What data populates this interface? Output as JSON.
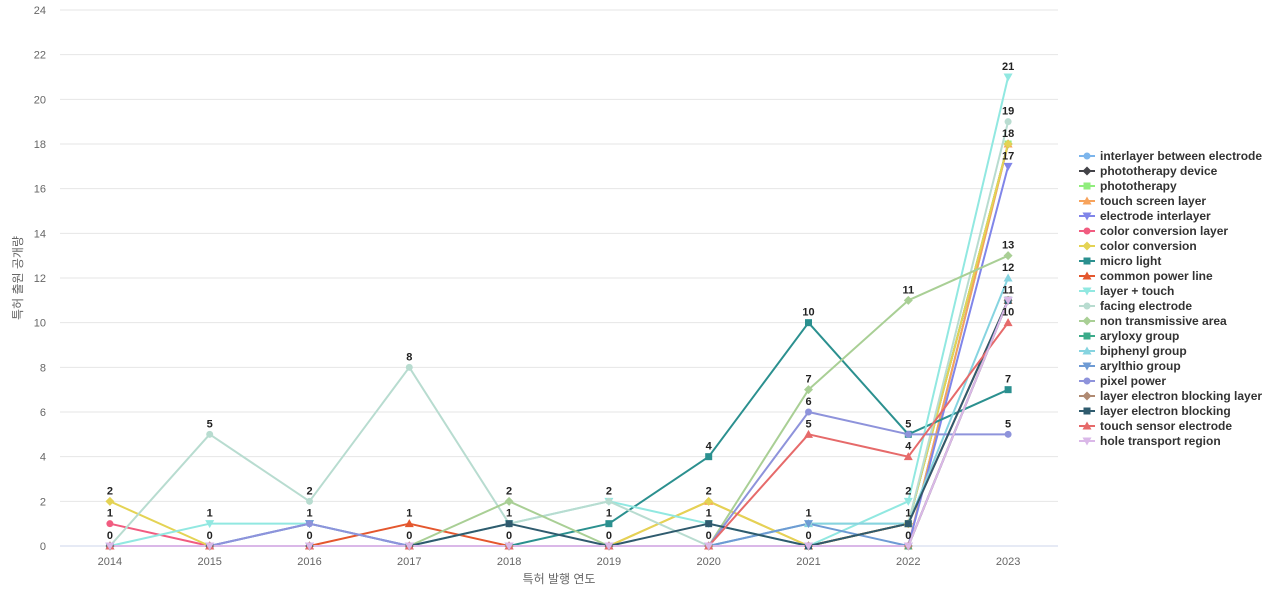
{
  "chart_data": {
    "type": "line",
    "title": "",
    "xlabel": "특허 발행 연도",
    "ylabel": "특허 출원 공개량",
    "x": [
      "2014",
      "2015",
      "2016",
      "2017",
      "2018",
      "2019",
      "2020",
      "2021",
      "2022",
      "2023"
    ],
    "ylim": [
      0,
      24
    ],
    "yticks": [
      0,
      2,
      4,
      6,
      8,
      10,
      12,
      14,
      16,
      18,
      20,
      22,
      24
    ],
    "grid": true,
    "legend": "right",
    "series": [
      {
        "name": "interlayer between electrode",
        "color": "#7cb5ec",
        "marker": "circle",
        "values": [
          0,
          0,
          1,
          0,
          0,
          0,
          0,
          0,
          0,
          18
        ]
      },
      {
        "name": "phototherapy device",
        "color": "#434348",
        "marker": "diamond",
        "values": [
          0,
          0,
          0,
          0,
          0,
          0,
          0,
          0,
          1,
          18
        ]
      },
      {
        "name": "phototherapy",
        "color": "#90ed7d",
        "marker": "square",
        "values": [
          0,
          0,
          0,
          0,
          0,
          0,
          0,
          0,
          1,
          18
        ]
      },
      {
        "name": "touch screen layer",
        "color": "#f7a35c",
        "marker": "triangle",
        "values": [
          0,
          0,
          0,
          0,
          0,
          0,
          2,
          0,
          0,
          18
        ]
      },
      {
        "name": "electrode interlayer",
        "color": "#8085e9",
        "marker": "triangle-down",
        "values": [
          0,
          0,
          0,
          0,
          0,
          0,
          0,
          0,
          0,
          17
        ]
      },
      {
        "name": "color conversion layer",
        "color": "#f15c80",
        "marker": "circle",
        "values": [
          1,
          0,
          0,
          0,
          0,
          0,
          0,
          0,
          0,
          11
        ]
      },
      {
        "name": "color conversion",
        "color": "#e4d354",
        "marker": "diamond",
        "values": [
          2,
          0,
          0,
          0,
          0,
          0,
          2,
          0,
          1,
          18
        ]
      },
      {
        "name": "micro light",
        "color": "#2b908f",
        "marker": "square",
        "values": [
          0,
          0,
          0,
          0,
          0,
          1,
          4,
          10,
          5,
          7
        ]
      },
      {
        "name": "common power line",
        "color": "#e4572e",
        "marker": "triangle",
        "values": [
          0,
          0,
          0,
          1,
          0,
          0,
          0,
          0,
          1,
          11
        ]
      },
      {
        "name": "layer + touch",
        "color": "#91e8e1",
        "marker": "triangle-down",
        "values": [
          0,
          1,
          1,
          0,
          1,
          2,
          1,
          0,
          2,
          21
        ]
      },
      {
        "name": "facing electrode",
        "color": "#b8dcd0",
        "marker": "circle",
        "values": [
          0,
          5,
          2,
          8,
          1,
          2,
          0,
          1,
          1,
          19
        ]
      },
      {
        "name": "non transmissive area",
        "color": "#a9cf95",
        "marker": "diamond",
        "values": [
          0,
          0,
          0,
          0,
          2,
          0,
          0,
          7,
          11,
          13
        ]
      },
      {
        "name": "aryloxy group",
        "color": "#3cab8a",
        "marker": "square",
        "values": [
          0,
          0,
          0,
          0,
          0,
          0,
          0,
          0,
          0,
          11
        ]
      },
      {
        "name": "biphenyl group",
        "color": "#86d4e0",
        "marker": "triangle",
        "values": [
          0,
          0,
          0,
          0,
          0,
          0,
          0,
          1,
          1,
          12
        ]
      },
      {
        "name": "arylthio group",
        "color": "#6e9bd4",
        "marker": "triangle-down",
        "values": [
          0,
          0,
          1,
          0,
          0,
          0,
          0,
          1,
          0,
          11
        ]
      },
      {
        "name": "pixel power",
        "color": "#8e93db",
        "marker": "circle",
        "values": [
          0,
          0,
          1,
          0,
          0,
          0,
          0,
          6,
          5,
          5
        ]
      },
      {
        "name": "layer electron blocking layer",
        "color": "#b08a72",
        "marker": "diamond",
        "values": [
          0,
          0,
          0,
          0,
          0,
          0,
          0,
          0,
          0,
          11
        ]
      },
      {
        "name": "layer electron blocking",
        "color": "#2f5b6e",
        "marker": "square",
        "values": [
          0,
          0,
          0,
          0,
          1,
          0,
          1,
          0,
          1,
          11
        ]
      },
      {
        "name": "touch sensor electrode",
        "color": "#e66a6a",
        "marker": "triangle",
        "values": [
          0,
          0,
          0,
          0,
          0,
          0,
          0,
          5,
          4,
          10
        ]
      },
      {
        "name": "hole transport region",
        "color": "#dab8e8",
        "marker": "triangle-down",
        "values": [
          0,
          0,
          0,
          0,
          0,
          0,
          0,
          0,
          0,
          11
        ]
      }
    ],
    "point_labels": [
      {
        "x": "2014",
        "y": 2,
        "text": "2"
      },
      {
        "x": "2014",
        "y": 1,
        "text": "1"
      },
      {
        "x": "2014",
        "y": 0,
        "text": "0"
      },
      {
        "x": "2015",
        "y": 5,
        "text": "5"
      },
      {
        "x": "2015",
        "y": 1,
        "text": "1"
      },
      {
        "x": "2015",
        "y": 0,
        "text": "0"
      },
      {
        "x": "2016",
        "y": 2,
        "text": "2"
      },
      {
        "x": "2016",
        "y": 1,
        "text": "1"
      },
      {
        "x": "2016",
        "y": 0,
        "text": "0"
      },
      {
        "x": "2017",
        "y": 8,
        "text": "8"
      },
      {
        "x": "2017",
        "y": 1,
        "text": "1"
      },
      {
        "x": "2017",
        "y": 0,
        "text": "0"
      },
      {
        "x": "2018",
        "y": 2,
        "text": "2"
      },
      {
        "x": "2018",
        "y": 1,
        "text": "1"
      },
      {
        "x": "2018",
        "y": 0,
        "text": "0"
      },
      {
        "x": "2019",
        "y": 2,
        "text": "2"
      },
      {
        "x": "2019",
        "y": 1,
        "text": "1"
      },
      {
        "x": "2019",
        "y": 0,
        "text": "0"
      },
      {
        "x": "2020",
        "y": 4,
        "text": "4"
      },
      {
        "x": "2020",
        "y": 2,
        "text": "2"
      },
      {
        "x": "2020",
        "y": 1,
        "text": "1"
      },
      {
        "x": "2020",
        "y": 0,
        "text": "0"
      },
      {
        "x": "2021",
        "y": 10,
        "text": "10"
      },
      {
        "x": "2021",
        "y": 7,
        "text": "7"
      },
      {
        "x": "2021",
        "y": 6,
        "text": "6"
      },
      {
        "x": "2021",
        "y": 5,
        "text": "5"
      },
      {
        "x": "2021",
        "y": 1,
        "text": "1"
      },
      {
        "x": "2021",
        "y": 0,
        "text": "0"
      },
      {
        "x": "2022",
        "y": 11,
        "text": "11"
      },
      {
        "x": "2022",
        "y": 5,
        "text": "5"
      },
      {
        "x": "2022",
        "y": 4,
        "text": "4"
      },
      {
        "x": "2022",
        "y": 2,
        "text": "2"
      },
      {
        "x": "2022",
        "y": 1,
        "text": "1"
      },
      {
        "x": "2022",
        "y": 0,
        "text": "0"
      },
      {
        "x": "2023",
        "y": 21,
        "text": "21"
      },
      {
        "x": "2023",
        "y": 19,
        "text": "19"
      },
      {
        "x": "2023",
        "y": 18,
        "text": "18"
      },
      {
        "x": "2023",
        "y": 17,
        "text": "17"
      },
      {
        "x": "2023",
        "y": 13,
        "text": "13"
      },
      {
        "x": "2023",
        "y": 12,
        "text": "12"
      },
      {
        "x": "2023",
        "y": 11,
        "text": "11"
      },
      {
        "x": "2023",
        "y": 10,
        "text": "10"
      },
      {
        "x": "2023",
        "y": 7,
        "text": "7"
      },
      {
        "x": "2023",
        "y": 5,
        "text": "5"
      }
    ]
  }
}
